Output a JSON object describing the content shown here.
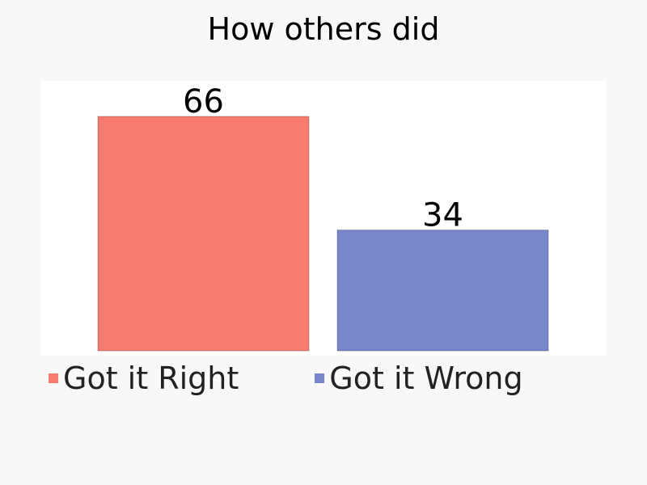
{
  "chart_data": {
    "type": "bar",
    "title": "How others did",
    "categories": [
      "Got it Right",
      "Got it Wrong"
    ],
    "values": [
      66,
      34
    ],
    "colors": [
      "#f87b6f",
      "#7886cc"
    ],
    "ylim": [
      0,
      72
    ],
    "grid": false,
    "legend": "bottom-left",
    "data_labels": [
      "66",
      "34"
    ]
  }
}
